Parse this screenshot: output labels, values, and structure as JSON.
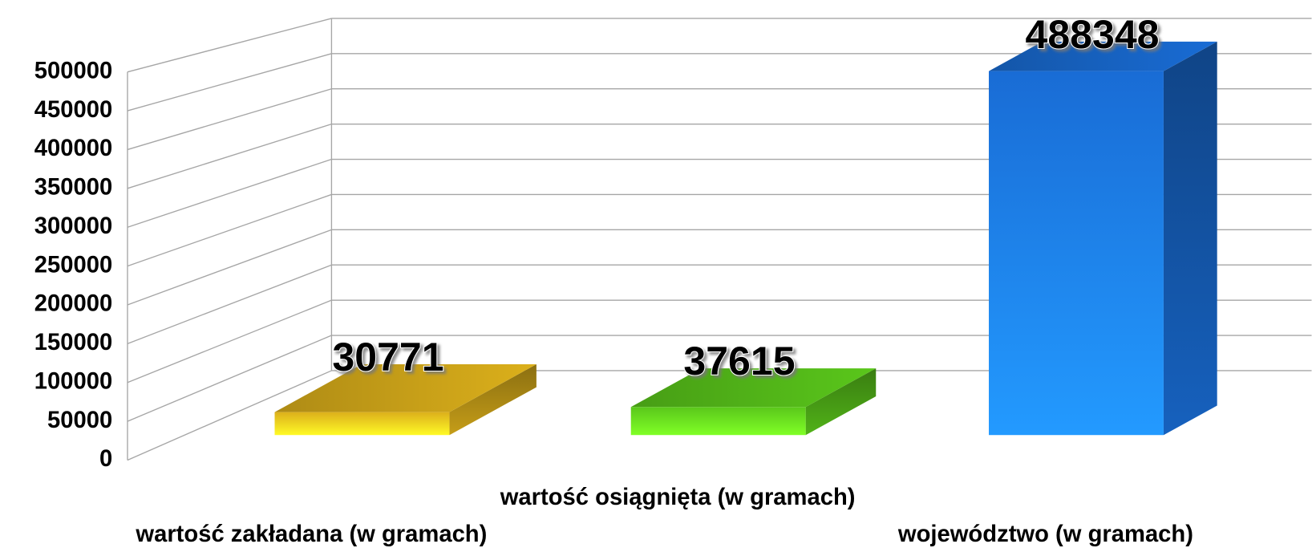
{
  "chart_data": {
    "type": "bar3d",
    "categories": [
      "wartość zakładana (w gramach)",
      "wartość osiągnięta (w gramach)",
      "województwo (w gramach)"
    ],
    "values": [
      30771,
      37615,
      488348
    ],
    "colors": [
      "#e8b91c",
      "#5fd11c",
      "#1a72e0"
    ],
    "ylim": [
      0,
      500000
    ],
    "yticks": [
      0,
      50000,
      100000,
      150000,
      200000,
      250000,
      300000,
      350000,
      400000,
      450000,
      500000
    ],
    "grid": true
  }
}
